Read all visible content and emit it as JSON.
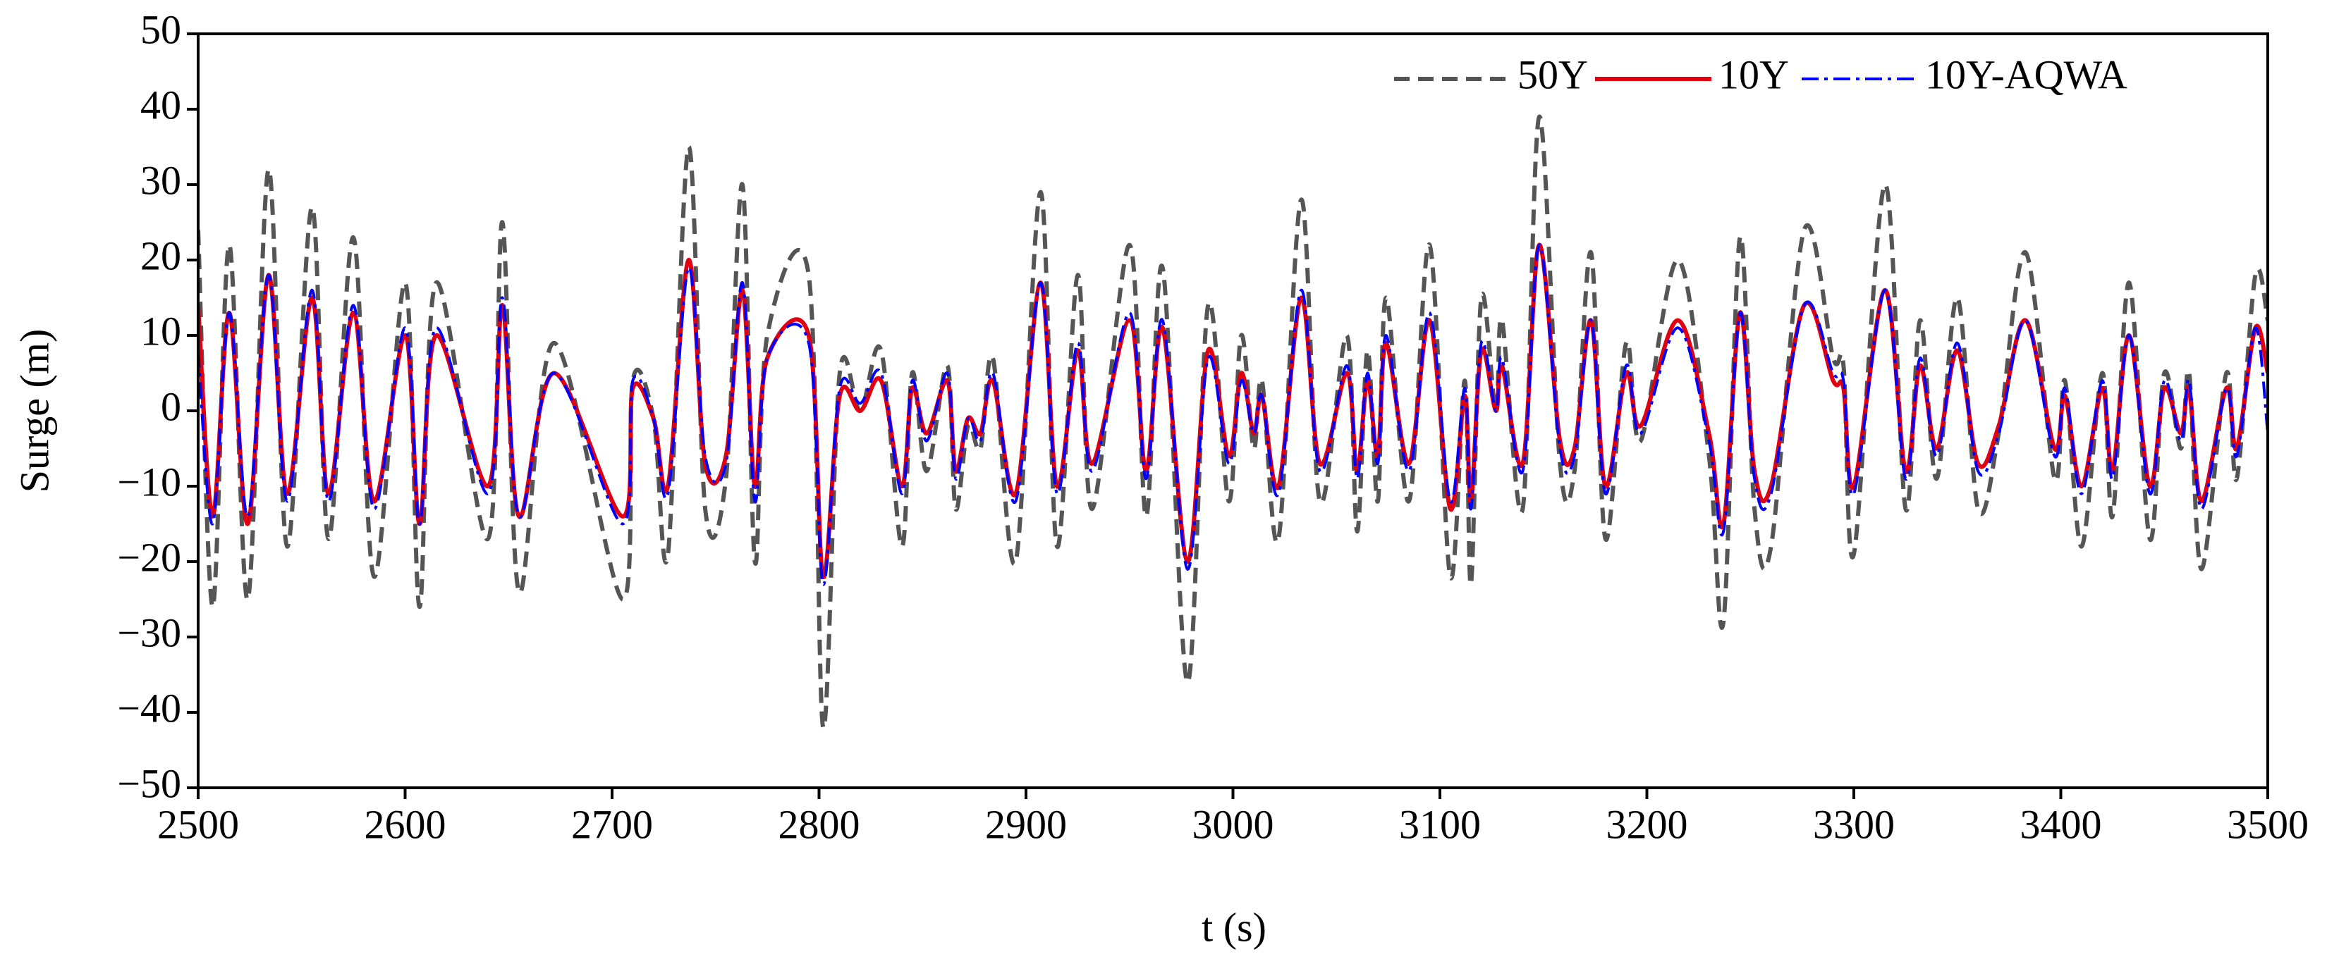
{
  "chart_data": {
    "type": "line",
    "xlabel": "t (s)",
    "ylabel": "Surge (m)",
    "x": [
      2500,
      2507,
      2515,
      2524,
      2534,
      2543,
      2555,
      2563,
      2575,
      2585,
      2600,
      2607,
      2615,
      2640,
      2647,
      2655,
      2672,
      2705,
      2710,
      2720,
      2727,
      2737,
      2745,
      2755,
      2763,
      2769,
      2775,
      2795,
      2802,
      2810,
      2820,
      2830,
      2840,
      2845,
      2852,
      2862,
      2866,
      2872,
      2878,
      2884,
      2895,
      2907,
      2915,
      2925,
      2932,
      2950,
      2958,
      2966,
      2978,
      2988,
      2998,
      3004,
      3010,
      3014,
      3022,
      3033,
      3042,
      3055,
      3060,
      3065,
      3070,
      3074,
      3085,
      3095,
      3105,
      3112,
      3115,
      3120,
      3127,
      3130,
      3140,
      3148,
      3158,
      3165,
      3173,
      3180,
      3190,
      3197,
      3215,
      3230,
      3237,
      3245,
      3252,
      3260,
      3276,
      3290,
      3295,
      3300,
      3315,
      3325,
      3332,
      3340,
      3350,
      3360,
      3370,
      3383,
      3397,
      3402,
      3410,
      3420,
      3425,
      3433,
      3443,
      3450,
      3458,
      3462,
      3468,
      3480,
      3485,
      3494,
      3500
    ],
    "series": [
      {
        "name": "50Y",
        "color": "#555555",
        "dash": "dash",
        "values": [
          24,
          -26,
          22,
          -25,
          32,
          -18,
          27,
          -17,
          23,
          -22,
          17,
          -26,
          17,
          -17,
          25,
          -24,
          9,
          -25,
          4,
          -1,
          -19,
          35,
          -13,
          -9,
          30,
          -20,
          10,
          18,
          -42,
          5,
          0,
          8,
          -18,
          5,
          -8,
          6,
          -13,
          -2,
          -5,
          7,
          -20,
          29,
          -18,
          18,
          -13,
          22,
          -14,
          19,
          -36,
          14,
          -12,
          10,
          -5,
          4,
          -17,
          28,
          -12,
          10,
          -16,
          8,
          -12,
          15,
          -12,
          22,
          -22,
          4,
          -23,
          15,
          0,
          12,
          -13,
          39,
          -7,
          -8,
          21,
          -17,
          9,
          -4,
          20,
          -6,
          -28,
          23,
          -13,
          -18,
          24,
          7,
          6,
          -19,
          30,
          -13,
          12,
          -9,
          15,
          -13,
          -3,
          21,
          -9,
          4,
          -18,
          5,
          -14,
          17,
          -17,
          5,
          -5,
          5,
          -21,
          5,
          -9,
          18,
          12
        ]
      },
      {
        "name": "10Y",
        "color": "#e0000f",
        "dash": "solid",
        "values": [
          14,
          -14,
          13,
          -15,
          18,
          -11,
          15,
          -11,
          13,
          -12,
          10,
          -15,
          10,
          -10,
          14,
          -14,
          5,
          -14,
          3,
          -1,
          -10,
          20,
          -7,
          -6,
          16,
          -10,
          7,
          10,
          -22,
          2,
          0,
          4,
          -10,
          3,
          -3,
          4,
          -8,
          -1,
          -3,
          4,
          -11,
          17,
          -10,
          8,
          -7,
          12,
          -8,
          11,
          -20,
          8,
          -6,
          5,
          -3,
          2,
          -10,
          15,
          -7,
          5,
          -8,
          4,
          -6,
          9,
          -7,
          12,
          -13,
          2,
          -12,
          8,
          0,
          6,
          -7,
          22,
          -4,
          -5,
          12,
          -10,
          5,
          -2,
          12,
          -3,
          -15,
          13,
          -8,
          -10,
          14,
          4,
          3,
          -10,
          16,
          -8,
          6,
          -5,
          8,
          -7,
          -2,
          12,
          -5,
          2,
          -10,
          3,
          -8,
          10,
          -10,
          3,
          -3,
          3,
          -12,
          3,
          -5,
          11,
          5
        ]
      },
      {
        "name": "10Y-AQWA",
        "color": "#0000ff",
        "dash": "dashdot",
        "values": [
          8,
          -15,
          13,
          -14,
          18,
          -12,
          16,
          -12,
          14,
          -13,
          11,
          -15,
          11,
          -11,
          15,
          -14,
          5,
          -15,
          4,
          -1,
          -11,
          19,
          -6,
          -7,
          17,
          -12,
          7,
          9,
          -23,
          3,
          1,
          5,
          -11,
          4,
          -4,
          5,
          -9,
          -1,
          -4,
          5,
          -12,
          17,
          -11,
          9,
          -8,
          13,
          -9,
          12,
          -21,
          7,
          -7,
          4,
          -3,
          2,
          -11,
          16,
          -8,
          6,
          -9,
          5,
          -7,
          10,
          -8,
          13,
          -12,
          3,
          -13,
          9,
          0,
          7,
          -8,
          22,
          -5,
          -6,
          12,
          -11,
          6,
          -3,
          11,
          -4,
          -16,
          13,
          -9,
          -11,
          14,
          5,
          4,
          -11,
          16,
          -9,
          7,
          -6,
          9,
          -8,
          -3,
          12,
          -6,
          3,
          -11,
          4,
          -9,
          10,
          -11,
          4,
          -4,
          4,
          -13,
          3,
          -6,
          11,
          -3
        ]
      }
    ],
    "xlim": [
      2500,
      3500
    ],
    "xticks": [
      2500,
      2600,
      2700,
      2800,
      2900,
      3000,
      3100,
      3200,
      3300,
      3400,
      3500
    ],
    "ylim": [
      -50,
      50
    ],
    "yticks": [
      {
        "value": -50,
        "label": "−50"
      },
      {
        "value": -40,
        "label": "−40"
      },
      {
        "value": -30,
        "label": "−30"
      },
      {
        "value": -20,
        "label": "−20"
      },
      {
        "value": -10,
        "label": "−10"
      },
      0,
      10,
      20,
      30,
      40,
      50
    ],
    "grid": false,
    "legend": "top-right"
  }
}
